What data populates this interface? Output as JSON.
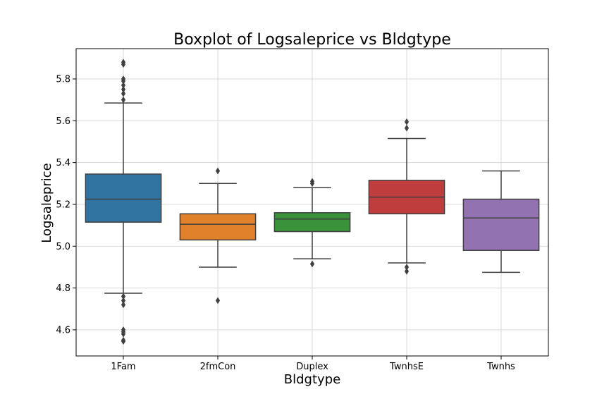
{
  "chart_data": {
    "type": "boxplot",
    "title": "Boxplot of Logsaleprice vs Bldgtype",
    "xlabel": "Bldgtype",
    "ylabel": "Logsaleprice",
    "ylim": [
      4.475,
      5.945
    ],
    "yticks": [
      4.6,
      4.8,
      5.0,
      5.2,
      5.4,
      5.6,
      5.8
    ],
    "grid": true,
    "categories": [
      "1Fam",
      "2fmCon",
      "Duplex",
      "TwnhsE",
      "Twnhs"
    ],
    "colors": [
      "#3274a1",
      "#e1812c",
      "#3a923a",
      "#c03d3e",
      "#9372b2"
    ],
    "boxes": [
      {
        "category": "1Fam",
        "whisker_low": 4.775,
        "q1": 5.115,
        "median": 5.225,
        "q3": 5.345,
        "whisker_high": 5.685,
        "outliers": [
          5.88,
          5.87,
          5.8,
          5.79,
          5.77,
          5.75,
          5.73,
          5.7,
          4.76,
          4.74,
          4.72,
          4.6,
          4.59,
          4.58,
          4.55,
          4.545
        ]
      },
      {
        "category": "2fmCon",
        "whisker_low": 4.9,
        "q1": 5.03,
        "median": 5.105,
        "q3": 5.155,
        "whisker_high": 5.3,
        "outliers": [
          5.36,
          4.74
        ]
      },
      {
        "category": "Duplex",
        "whisker_low": 4.94,
        "q1": 5.07,
        "median": 5.13,
        "q3": 5.16,
        "whisker_high": 5.28,
        "outliers": [
          5.31,
          5.3,
          4.915
        ]
      },
      {
        "category": "TwnhsE",
        "whisker_low": 4.92,
        "q1": 5.155,
        "median": 5.235,
        "q3": 5.315,
        "whisker_high": 5.515,
        "outliers": [
          5.595,
          5.565,
          4.9,
          4.88
        ]
      },
      {
        "category": "Twnhs",
        "whisker_low": 4.875,
        "q1": 4.98,
        "median": 5.135,
        "q3": 5.225,
        "whisker_high": 5.36,
        "outliers": []
      }
    ]
  }
}
